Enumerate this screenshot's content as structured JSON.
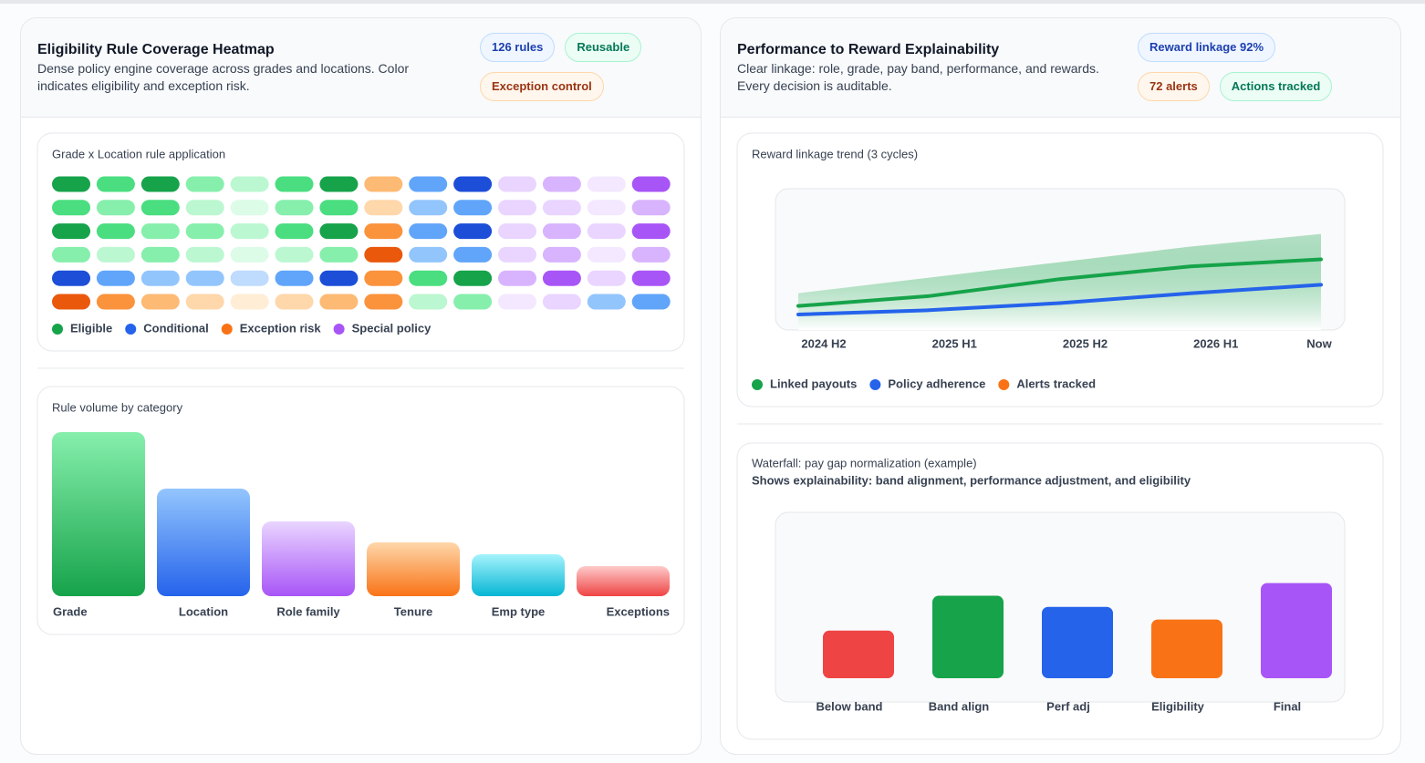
{
  "cards": [
    {
      "title": "Eligibility Rule Coverage Heatmap",
      "subtitle": "Dense policy engine coverage across grades and locations. Color indicates eligibility and exception risk.",
      "badges": [
        {
          "text": "126 rules",
          "tone": "blue"
        },
        {
          "text": "Reusable",
          "tone": "green"
        },
        {
          "text": "Exception control",
          "tone": "orange"
        }
      ]
    },
    {
      "title": "Performance to Reward Explainability",
      "subtitle": "Clear linkage: role, grade, pay band, performance, and rewards. Every decision is auditable.",
      "badges": [
        {
          "text": "Reward linkage 92%",
          "tone": "blue"
        },
        {
          "text": "72 alerts",
          "tone": "orange"
        },
        {
          "text": "Actions tracked",
          "tone": "green"
        }
      ]
    }
  ],
  "chart_data": [
    {
      "type": "heatmap",
      "title": "Grade x Location rule application",
      "cells": [
        [
          "#16a34a",
          "#4ade80",
          "#16a34a",
          "#86efac",
          "#bbf7d0",
          "#4ade80",
          "#16a34a",
          "#fdba74",
          "#60a5fa",
          "#1d4ed8",
          "#e9d5ff",
          "#d8b4fe",
          "#f3e8ff",
          "#a855f7"
        ],
        [
          "#4ade80",
          "#86efac",
          "#4ade80",
          "#bbf7d0",
          "#dcfce7",
          "#86efac",
          "#4ade80",
          "#fed7aa",
          "#93c5fd",
          "#60a5fa",
          "#e9d5ff",
          "#e9d5ff",
          "#f3e8ff",
          "#d8b4fe"
        ],
        [
          "#16a34a",
          "#4ade80",
          "#86efac",
          "#86efac",
          "#bbf7d0",
          "#4ade80",
          "#16a34a",
          "#fb923c",
          "#60a5fa",
          "#1d4ed8",
          "#e9d5ff",
          "#d8b4fe",
          "#e9d5ff",
          "#a855f7"
        ],
        [
          "#86efac",
          "#bbf7d0",
          "#86efac",
          "#bbf7d0",
          "#dcfce7",
          "#bbf7d0",
          "#86efac",
          "#ea580c",
          "#93c5fd",
          "#60a5fa",
          "#e9d5ff",
          "#d8b4fe",
          "#f3e8ff",
          "#d8b4fe"
        ],
        [
          "#1d4ed8",
          "#60a5fa",
          "#93c5fd",
          "#93c5fd",
          "#bfdbfe",
          "#60a5fa",
          "#1d4ed8",
          "#fb923c",
          "#4ade80",
          "#16a34a",
          "#d8b4fe",
          "#a855f7",
          "#e9d5ff",
          "#a855f7"
        ],
        [
          "#ea580c",
          "#fb923c",
          "#fdba74",
          "#fed7aa",
          "#ffedd5",
          "#fed7aa",
          "#fdba74",
          "#fb923c",
          "#bbf7d0",
          "#86efac",
          "#f3e8ff",
          "#e9d5ff",
          "#93c5fd",
          "#60a5fa"
        ]
      ],
      "legend": [
        {
          "name": "Eligible",
          "color": "#16a34a"
        },
        {
          "name": "Conditional",
          "color": "#2563eb"
        },
        {
          "name": "Exception risk",
          "color": "#f97316"
        },
        {
          "name": "Special policy",
          "color": "#a855f7"
        }
      ]
    },
    {
      "type": "bar",
      "title": "Rule volume by category",
      "categories": [
        "Grade",
        "Location",
        "Role family",
        "Tenure",
        "Emp type",
        "Exceptions"
      ],
      "values": [
        180,
        118,
        82,
        59,
        46,
        33
      ],
      "colors": [
        [
          "#86efac",
          "#16a34a"
        ],
        [
          "#93c5fd",
          "#2563eb"
        ],
        [
          "#e9d5ff",
          "#a855f7"
        ],
        [
          "#fed7aa",
          "#f97316"
        ],
        [
          "#a5f3fc",
          "#06b6d4"
        ],
        [
          "#fecaca",
          "#ef4444"
        ]
      ],
      "ylim": [
        0,
        180
      ]
    },
    {
      "type": "line",
      "title": "Reward linkage trend (3 cycles)",
      "x": [
        "2024 H2",
        "2025 H1",
        "2025 H2",
        "2026 H1",
        "Now"
      ],
      "series": [
        {
          "name": "Linked payouts",
          "color": "#16a34a",
          "values": [
            17,
            24,
            36,
            45,
            50
          ]
        },
        {
          "name": "Policy adherence",
          "color": "#2563eb",
          "values": [
            11,
            14,
            19,
            26,
            32
          ]
        },
        {
          "name": "Alerts tracked",
          "color": "#f97316",
          "values": [
            null,
            null,
            null,
            null,
            null
          ]
        }
      ],
      "band": [
        26,
        37,
        48,
        59,
        68
      ],
      "band_color": "#16a34a",
      "ylim": [
        0,
        100
      ]
    },
    {
      "type": "bar",
      "title": "Waterfall: pay gap normalization (example)",
      "subtitle": "Shows explainability: band alignment, performance adjustment, and eligibility",
      "categories": [
        "Below band",
        "Band align",
        "Perf adj",
        "Eligibility",
        "Final"
      ],
      "values": [
        30,
        52,
        45,
        37,
        60
      ],
      "colors": [
        "#ef4444",
        "#16a34a",
        "#2563eb",
        "#f97316",
        "#a855f7"
      ],
      "ylim": [
        0,
        100
      ]
    }
  ]
}
